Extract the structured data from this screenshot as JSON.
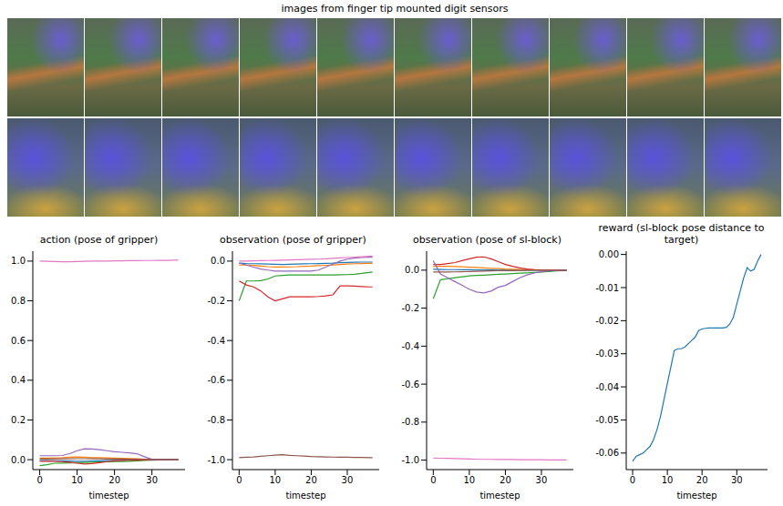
{
  "images": {
    "title": "images from finger tip mounted digit sensors",
    "rows": 2,
    "columns": 10
  },
  "chart_data": [
    {
      "type": "line",
      "title": "action (pose of gripper)",
      "x_label": "timestep",
      "x": [
        0,
        2,
        4,
        6,
        8,
        10,
        12,
        14,
        16,
        18,
        20,
        22,
        24,
        26,
        28,
        30,
        32,
        34,
        36,
        37
      ],
      "xlim": [
        -1.85,
        38.85
      ],
      "xticks": [
        0,
        10,
        20,
        30
      ],
      "ylim": [
        -0.05,
        1.05
      ],
      "yticks": [
        {
          "value": 0,
          "label": "0.0"
        },
        0.2,
        0.4,
        0.6,
        0.8,
        {
          "value": 1,
          "label": "1.0"
        }
      ],
      "series": [
        {
          "color": "#1f77b4",
          "values": [
            -0.005,
            -0.005,
            -0.006,
            -0.006,
            -0.007,
            -0.008,
            -0.008,
            -0.007,
            -0.006,
            -0.005,
            -0.004,
            -0.004,
            -0.003,
            -0.002,
            -0.001,
            0,
            0,
            0,
            0,
            0
          ]
        },
        {
          "color": "#ff7f0e",
          "values": [
            0.008,
            0.008,
            0.009,
            0.01,
            0.012,
            0.014,
            0.012,
            0.01,
            0.01,
            0.009,
            0.008,
            0.007,
            0.006,
            0.004,
            0.002,
            0.001,
            0,
            0,
            0,
            0
          ]
        },
        {
          "color": "#2ca02c",
          "values": [
            -0.03,
            -0.025,
            -0.018,
            -0.017,
            -0.016,
            -0.015,
            -0.014,
            -0.013,
            -0.012,
            -0.011,
            -0.01,
            -0.009,
            -0.008,
            -0.006,
            -0.004,
            -0.002,
            -0.001,
            0,
            0,
            0
          ]
        },
        {
          "color": "#d62728",
          "values": [
            -0.008,
            -0.008,
            -0.008,
            -0.01,
            -0.013,
            -0.018,
            -0.022,
            -0.02,
            -0.015,
            -0.01,
            -0.006,
            -0.004,
            -0.003,
            -0.002,
            -0.001,
            0,
            0,
            0,
            0,
            0
          ]
        },
        {
          "color": "#9467bd",
          "values": [
            0.02,
            0.02,
            0.02,
            0.021,
            0.03,
            0.045,
            0.055,
            0.054,
            0.05,
            0.045,
            0.04,
            0.037,
            0.034,
            0.03,
            0.015,
            0.002,
            0,
            0,
            0,
            0
          ]
        },
        {
          "color": "#8c564b",
          "values": [
            0.003,
            0.003,
            0.003,
            0.004,
            0.004,
            0.005,
            0.005,
            0.004,
            0.004,
            0.003,
            0.003,
            0.003,
            0.002,
            0.002,
            0.001,
            0,
            0,
            0,
            0,
            0
          ]
        },
        {
          "color": "#e377c2",
          "values": [
            1.0,
            0.999,
            0.998,
            0.997,
            0.997,
            0.998,
            0.999,
            1.0,
            1.0,
            1.0,
            1.001,
            1.001,
            1.002,
            1.002,
            1.003,
            1.003,
            1.004,
            1.004,
            1.005,
            1.005
          ]
        }
      ]
    },
    {
      "type": "line",
      "title": "observation (pose of gripper)",
      "x_label": "timestep",
      "x": [
        0,
        2,
        4,
        6,
        8,
        10,
        12,
        14,
        16,
        18,
        20,
        22,
        24,
        26,
        28,
        30,
        32,
        34,
        36,
        37
      ],
      "xlim": [
        -1.85,
        38.85
      ],
      "xticks": [
        0,
        10,
        20,
        30
      ],
      "ylim": [
        -1.05,
        0.05
      ],
      "yticks": [
        {
          "value": 0,
          "label": "0.0"
        },
        -0.2,
        -0.4,
        -0.6,
        -0.8,
        {
          "value": -1,
          "label": "-1.0"
        }
      ],
      "series": [
        {
          "color": "#1f77b4",
          "values": [
            -0.01,
            -0.012,
            -0.013,
            -0.014,
            -0.015,
            -0.016,
            -0.017,
            -0.016,
            -0.015,
            -0.014,
            -0.013,
            -0.012,
            -0.011,
            -0.01,
            -0.008,
            -0.007,
            -0.006,
            -0.005,
            -0.005,
            -0.005
          ]
        },
        {
          "color": "#ff7f0e",
          "values": [
            -0.02,
            -0.02,
            -0.022,
            -0.025,
            -0.028,
            -0.03,
            -0.03,
            -0.029,
            -0.028,
            -0.026,
            -0.025,
            -0.023,
            -0.021,
            -0.019,
            -0.017,
            -0.015,
            -0.013,
            -0.012,
            -0.011,
            -0.011
          ]
        },
        {
          "color": "#2ca02c",
          "values": [
            -0.2,
            -0.1,
            -0.1,
            -0.098,
            -0.09,
            -0.075,
            -0.072,
            -0.07,
            -0.07,
            -0.07,
            -0.07,
            -0.07,
            -0.07,
            -0.07,
            -0.069,
            -0.068,
            -0.066,
            -0.062,
            -0.057,
            -0.055
          ]
        },
        {
          "color": "#d62728",
          "values": [
            -0.1,
            -0.12,
            -0.13,
            -0.15,
            -0.18,
            -0.2,
            -0.19,
            -0.18,
            -0.18,
            -0.18,
            -0.18,
            -0.178,
            -0.175,
            -0.17,
            -0.125,
            -0.125,
            -0.126,
            -0.128,
            -0.13,
            -0.13
          ]
        },
        {
          "color": "#9467bd",
          "values": [
            -0.01,
            -0.02,
            -0.03,
            -0.04,
            -0.045,
            -0.05,
            -0.05,
            -0.05,
            -0.05,
            -0.05,
            -0.05,
            -0.045,
            -0.03,
            -0.015,
            0.0,
            0.01,
            0.015,
            0.018,
            0.02,
            0.02
          ]
        },
        {
          "color": "#8c564b",
          "values": [
            -0.99,
            -0.988,
            -0.986,
            -0.983,
            -0.98,
            -0.977,
            -0.975,
            -0.978,
            -0.98,
            -0.982,
            -0.984,
            -0.985,
            -0.986,
            -0.987,
            -0.988,
            -0.988,
            -0.989,
            -0.989,
            -0.99,
            -0.99
          ]
        },
        {
          "color": "#e377c2",
          "values": [
            0.0,
            0.0,
            0.001,
            0.002,
            0.003,
            0.004,
            0.005,
            0.006,
            0.007,
            0.008,
            0.009,
            0.01,
            0.012,
            0.014,
            0.016,
            0.018,
            0.02,
            0.022,
            0.024,
            0.025
          ]
        }
      ]
    },
    {
      "type": "line",
      "title": "observation (pose of sl-block)",
      "x_label": "timestep",
      "x": [
        0,
        2,
        4,
        6,
        8,
        10,
        12,
        14,
        16,
        18,
        20,
        22,
        24,
        26,
        28,
        30,
        32,
        34,
        36,
        37
      ],
      "xlim": [
        -1.85,
        38.85
      ],
      "xticks": [
        0,
        10,
        20,
        30
      ],
      "ylim": [
        -1.05,
        0.1
      ],
      "yticks": [
        {
          "value": 0,
          "label": "0.0"
        },
        -0.2,
        -0.4,
        -0.6,
        -0.8,
        {
          "value": -1,
          "label": "-1.0"
        }
      ],
      "series": [
        {
          "color": "#1f77b4",
          "values": [
            0.005,
            0.004,
            0.003,
            0.003,
            0.002,
            0.002,
            0.001,
            0.001,
            0.001,
            0,
            0,
            0,
            0,
            0,
            0,
            0,
            0,
            0,
            0,
            0
          ]
        },
        {
          "color": "#ff7f0e",
          "values": [
            0.02,
            0.02,
            0.02,
            0.019,
            0.018,
            0.016,
            0.014,
            0.012,
            0.01,
            0.008,
            0.006,
            0.005,
            0.004,
            0.003,
            0.002,
            0.001,
            0,
            0,
            0,
            0
          ]
        },
        {
          "color": "#2ca02c",
          "values": [
            -0.15,
            -0.05,
            -0.045,
            -0.04,
            -0.035,
            -0.03,
            -0.028,
            -0.026,
            -0.024,
            -0.022,
            -0.02,
            -0.018,
            -0.016,
            -0.014,
            -0.012,
            -0.01,
            -0.007,
            -0.004,
            -0.002,
            0.0
          ]
        },
        {
          "color": "#d62728",
          "values": [
            0.03,
            0.03,
            0.035,
            0.04,
            0.05,
            0.06,
            0.068,
            0.07,
            0.06,
            0.045,
            0.03,
            0.02,
            0.012,
            0.006,
            0.003,
            0.001,
            0.0,
            0.0,
            0.0,
            0.0
          ]
        },
        {
          "color": "#9467bd",
          "values": [
            0.05,
            -0.02,
            -0.04,
            -0.06,
            -0.08,
            -0.1,
            -0.115,
            -0.12,
            -0.11,
            -0.09,
            -0.08,
            -0.06,
            -0.04,
            -0.025,
            -0.015,
            -0.008,
            -0.004,
            -0.002,
            0.0,
            0.0
          ]
        },
        {
          "color": "#8c564b",
          "values": [
            -0.01,
            -0.01,
            -0.01,
            -0.009,
            -0.008,
            -0.007,
            -0.006,
            -0.005,
            -0.004,
            -0.003,
            -0.002,
            -0.002,
            -0.001,
            -0.001,
            0,
            0,
            0,
            0,
            0,
            0
          ]
        },
        {
          "color": "#e377c2",
          "values": [
            -0.99,
            -0.99,
            -0.991,
            -0.992,
            -0.993,
            -0.994,
            -0.995,
            -0.996,
            -0.996,
            -0.997,
            -0.997,
            -0.997,
            -0.998,
            -0.998,
            -0.998,
            -0.998,
            -0.999,
            -0.999,
            -0.999,
            -0.999
          ]
        }
      ]
    },
    {
      "type": "line",
      "title": "reward (sl-block pose distance to target)",
      "x_label": "timestep",
      "x": [
        0,
        1,
        2,
        3,
        4,
        5,
        6,
        7,
        8,
        9,
        10,
        11,
        12,
        13,
        14,
        15,
        16,
        17,
        18,
        19,
        20,
        21,
        22,
        23,
        24,
        25,
        26,
        27,
        28,
        29,
        30,
        31,
        32,
        33,
        34,
        35,
        36,
        37
      ],
      "xlim": [
        -1.85,
        38.85
      ],
      "xticks": [
        0,
        10,
        20,
        30
      ],
      "ylim": [
        -0.065,
        0.001
      ],
      "yticks": [
        {
          "value": 0,
          "label": "0.00"
        },
        -0.01,
        -0.02,
        -0.03,
        -0.04,
        -0.05,
        -0.06
      ],
      "series": [
        {
          "color": "#1f77b4",
          "values": [
            -0.0625,
            -0.061,
            -0.0605,
            -0.06,
            -0.059,
            -0.058,
            -0.056,
            -0.053,
            -0.049,
            -0.044,
            -0.039,
            -0.034,
            -0.029,
            -0.0285,
            -0.0285,
            -0.028,
            -0.027,
            -0.026,
            -0.025,
            -0.023,
            -0.0225,
            -0.0223,
            -0.0222,
            -0.0222,
            -0.0222,
            -0.0222,
            -0.0222,
            -0.022,
            -0.021,
            -0.019,
            -0.015,
            -0.011,
            -0.007,
            -0.004,
            -0.005,
            -0.0045,
            -0.002,
            0.0
          ]
        }
      ]
    }
  ]
}
